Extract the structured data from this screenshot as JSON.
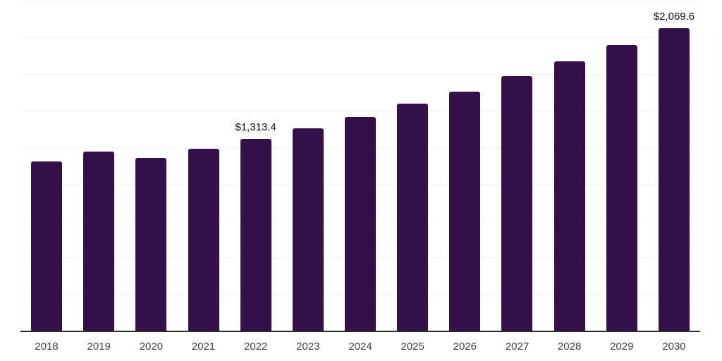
{
  "chart_data": {
    "type": "bar",
    "title": "",
    "xlabel": "",
    "ylabel": "",
    "categories": [
      "2018",
      "2019",
      "2020",
      "2021",
      "2022",
      "2023",
      "2024",
      "2025",
      "2026",
      "2027",
      "2028",
      "2029",
      "2030"
    ],
    "values": [
      1160.0,
      1226.0,
      1183.0,
      1245.0,
      1313.4,
      1387.0,
      1462.0,
      1553.0,
      1637.0,
      1739.0,
      1840.0,
      1952.0,
      2069.6
    ],
    "ylim": [
      0,
      2250
    ],
    "gridline_step": 250,
    "grid": true,
    "y_axis_labels_visible": false,
    "legend": null,
    "annotations": [
      {
        "category": "2022",
        "text": "$1,313.4"
      },
      {
        "category": "2030",
        "text": "$2,069.6"
      }
    ],
    "colors": {
      "bar": "#341149",
      "background": "#ffffff",
      "gridline": "#f2f2f2",
      "axis_line": "#2d2d2d",
      "tick_label": "#404040",
      "annotation_text": "#111111"
    }
  }
}
